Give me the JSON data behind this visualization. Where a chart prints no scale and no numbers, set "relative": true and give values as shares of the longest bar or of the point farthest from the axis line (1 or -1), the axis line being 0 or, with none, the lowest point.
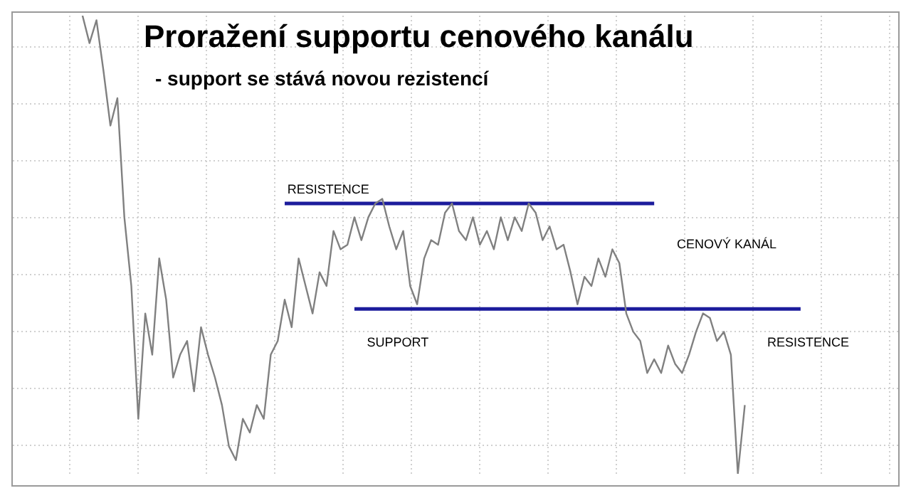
{
  "chart_data": {
    "type": "line",
    "title": "Proražení supportu cenového kanálu",
    "subtitle": "- support se stává novou rezistencí",
    "relative": true,
    "grid": true,
    "tick_labels": false,
    "marker": "none",
    "line_style": "solid",
    "categories": [
      null,
      null,
      null,
      null,
      null,
      null,
      null,
      null,
      null,
      null,
      null,
      null,
      null,
      null,
      null,
      null,
      null,
      null,
      null,
      null,
      null,
      null,
      null,
      null,
      null,
      null,
      null,
      null,
      null,
      null,
      null,
      null,
      null,
      null,
      null,
      null,
      null,
      null,
      null,
      null,
      null,
      null,
      null,
      null,
      null,
      null,
      null,
      null,
      null,
      null,
      null,
      null,
      null,
      null,
      null,
      null,
      null,
      null,
      null,
      null,
      null,
      null,
      null,
      null,
      null,
      null,
      null,
      null,
      null,
      null,
      null,
      null,
      null,
      null,
      null,
      null,
      null,
      null,
      null,
      null,
      null,
      null,
      null,
      null,
      null,
      null,
      null,
      null,
      null,
      null,
      null,
      null,
      null,
      null,
      null,
      null,
      null,
      null,
      null,
      null,
      null,
      null,
      null,
      null,
      null,
      null,
      null,
      null,
      null,
      null,
      null,
      null,
      null,
      null,
      null,
      null,
      null,
      null,
      null,
      null,
      null,
      null,
      null,
      null,
      null,
      null,
      null,
      null
    ],
    "series": [
      {
        "color": "#808080",
        "values": [
          null,
          null,
          null,
          null,
          null,
          null,
          null,
          null,
          null,
          null,
          1.0,
          0.94,
          0.99,
          0.88,
          0.76,
          0.82,
          0.56,
          0.41,
          0.12,
          0.35,
          0.26,
          0.47,
          0.38,
          0.21,
          0.26,
          0.29,
          0.18,
          0.32,
          0.26,
          0.21,
          0.15,
          0.06,
          0.03,
          0.12,
          0.09,
          0.15,
          0.12,
          0.26,
          0.29,
          0.38,
          0.32,
          0.47,
          0.41,
          0.35,
          0.44,
          0.41,
          0.53,
          0.49,
          0.5,
          0.56,
          0.51,
          0.56,
          0.59,
          0.6,
          0.54,
          0.49,
          0.53,
          0.41,
          0.37,
          0.47,
          0.51,
          0.5,
          0.57,
          0.59,
          0.53,
          0.51,
          0.56,
          0.5,
          0.53,
          0.49,
          0.56,
          0.51,
          0.56,
          0.53,
          0.59,
          0.57,
          0.51,
          0.54,
          0.49,
          0.5,
          0.44,
          0.37,
          0.43,
          0.41,
          0.47,
          0.43,
          0.49,
          0.46,
          0.35,
          0.31,
          0.29,
          0.22,
          0.25,
          0.22,
          0.28,
          0.24,
          0.22,
          0.26,
          0.31,
          0.35,
          0.34,
          0.29,
          0.31,
          0.26,
          0.0,
          0.15,
          null,
          null,
          null,
          null,
          null,
          null,
          null,
          null,
          null,
          null,
          null,
          null,
          null,
          null,
          null,
          null,
          null,
          null,
          null,
          null,
          null,
          null
        ]
      },
      {
        "color": "#1c1c9c",
        "values": [
          null,
          null,
          null,
          null,
          null,
          null,
          null,
          null,
          null,
          null,
          null,
          null,
          null,
          null,
          null,
          null,
          null,
          null,
          null,
          null,
          null,
          null,
          null,
          null,
          null,
          null,
          null,
          null,
          null,
          null,
          null,
          null,
          null,
          null,
          null,
          null,
          null,
          null,
          null,
          0.59,
          0.59,
          0.59,
          0.59,
          0.59,
          0.59,
          0.59,
          0.59,
          0.59,
          0.59,
          0.59,
          0.59,
          0.59,
          0.59,
          0.59,
          0.59,
          0.59,
          0.59,
          0.59,
          0.59,
          0.59,
          0.59,
          0.59,
          0.59,
          0.59,
          0.59,
          0.59,
          0.59,
          0.59,
          0.59,
          0.59,
          0.59,
          0.59,
          0.59,
          0.59,
          0.59,
          0.59,
          0.59,
          0.59,
          0.59,
          0.59,
          0.59,
          0.59,
          0.59,
          0.59,
          0.59,
          0.59,
          0.59,
          0.59,
          0.59,
          0.59,
          0.59,
          0.59,
          0.59,
          null,
          null,
          null,
          null,
          null,
          null,
          null,
          null,
          null,
          null,
          null,
          null,
          null,
          null,
          null,
          null,
          null,
          null,
          null,
          null,
          null,
          null,
          null,
          null,
          null,
          null,
          null,
          null,
          null,
          null,
          null,
          null,
          null,
          null,
          null
        ]
      },
      {
        "color": "#1c1c9c",
        "values": [
          null,
          null,
          null,
          null,
          null,
          null,
          null,
          null,
          null,
          null,
          null,
          null,
          null,
          null,
          null,
          null,
          null,
          null,
          null,
          null,
          null,
          null,
          null,
          null,
          null,
          null,
          null,
          null,
          null,
          null,
          null,
          null,
          null,
          null,
          null,
          null,
          null,
          null,
          null,
          null,
          null,
          null,
          null,
          null,
          null,
          null,
          null,
          null,
          null,
          0.36,
          0.36,
          0.36,
          0.36,
          0.36,
          0.36,
          0.36,
          0.36,
          0.36,
          0.36,
          0.36,
          0.36,
          0.36,
          0.36,
          0.36,
          0.36,
          0.36,
          0.36,
          0.36,
          0.36,
          0.36,
          0.36,
          0.36,
          0.36,
          0.36,
          0.36,
          0.36,
          0.36,
          0.36,
          0.36,
          0.36,
          0.36,
          0.36,
          0.36,
          0.36,
          0.36,
          0.36,
          0.36,
          0.36,
          0.36,
          0.36,
          0.36,
          0.36,
          0.36,
          0.36,
          0.36,
          0.36,
          0.36,
          0.36,
          0.36,
          0.36,
          0.36,
          0.36,
          0.36,
          0.36,
          0.36,
          0.36,
          0.36,
          0.36,
          0.36,
          0.36,
          0.36,
          0.36,
          0.36,
          0.36,
          null,
          null,
          null,
          null,
          null,
          null,
          null,
          null,
          null,
          null,
          null,
          null,
          null,
          null
        ]
      }
    ],
    "annotations": [
      "RESISTENCE",
      "CENOVÝ KANÁL",
      "SUPPORT",
      "RESISTENCE"
    ]
  }
}
